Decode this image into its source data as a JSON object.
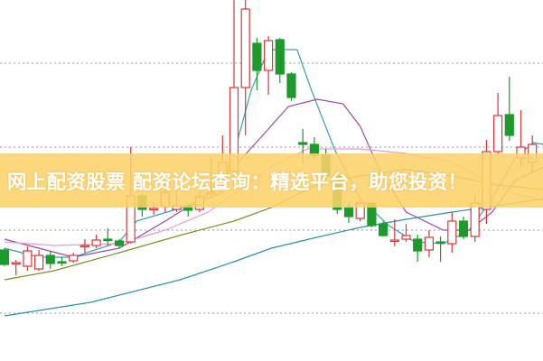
{
  "banner": {
    "text": "网上配资股票 配资论坛查询：精选平台，助您投资！"
  },
  "chart_data": {
    "type": "candlestick",
    "grid": true,
    "up_color": "#d9363e",
    "down_color": "#1e9a2c",
    "candles_ohlc_note_fields": [
      "open",
      "close",
      "high",
      "low"
    ],
    "candles": [
      [
        30.75,
        26.75,
        31.25,
        26.25
      ],
      [
        27,
        27.25,
        28,
        23.75
      ],
      [
        26.25,
        30.5,
        31.75,
        25
      ],
      [
        25.5,
        29.25,
        30.75,
        25
      ],
      [
        29.25,
        27,
        30.5,
        25.5
      ],
      [
        27.5,
        27.25,
        28.75,
        26.25
      ],
      [
        27.75,
        29.25,
        30,
        27.25
      ],
      [
        31.75,
        32,
        33.75,
        30
      ],
      [
        32,
        33.5,
        35,
        31.25
      ],
      [
        33.75,
        33.5,
        36.75,
        32
      ],
      [
        33.25,
        32,
        33.75,
        31.25
      ],
      [
        33,
        45.75,
        59.25,
        32.5
      ],
      [
        45.75,
        42,
        46.25,
        40
      ],
      [
        42,
        42.25,
        43.75,
        40.5
      ],
      [
        42.75,
        46.75,
        48.75,
        41.25
      ],
      [
        42,
        43,
        47.5,
        41.25
      ],
      [
        43,
        41.75,
        43.75,
        40
      ],
      [
        42,
        45.5,
        48.75,
        41.25
      ],
      [
        46.25,
        46.75,
        56.25,
        45
      ],
      [
        50,
        55,
        62.5,
        46.25
      ],
      [
        52.5,
        75.75,
        100,
        51.25
      ],
      [
        75.75,
        97.5,
        100,
        62.5
      ],
      [
        88,
        80.5,
        89.5,
        75
      ],
      [
        80.5,
        88.75,
        90,
        73.75
      ],
      [
        89,
        79.5,
        89.5,
        77
      ],
      [
        79.5,
        73,
        80,
        72
      ],
      [
        60.5,
        60,
        64.25,
        54.5
      ],
      [
        60,
        57,
        62,
        56
      ],
      [
        57,
        51.25,
        58.75,
        50
      ],
      [
        51.25,
        42,
        52.5,
        40.75
      ],
      [
        42.5,
        40,
        43.75,
        38.25
      ],
      [
        39.5,
        43.75,
        44.5,
        38.75
      ],
      [
        43.75,
        37.5,
        43.75,
        37
      ],
      [
        38,
        34.75,
        38.75,
        34.5
      ],
      [
        33.25,
        33.5,
        39.25,
        31.75
      ],
      [
        33.75,
        34.75,
        38,
        33
      ],
      [
        33.75,
        30.5,
        35,
        27.5
      ],
      [
        30.75,
        34.25,
        36.25,
        28.75
      ],
      [
        33,
        32.75,
        34.5,
        27.5
      ],
      [
        32.5,
        38.75,
        41.25,
        30
      ],
      [
        38.75,
        34.5,
        40,
        33.75
      ],
      [
        34.5,
        43.75,
        46.25,
        33
      ],
      [
        42,
        58,
        61.25,
        38
      ],
      [
        58,
        68,
        74.25,
        57
      ],
      [
        68.25,
        62.5,
        78.75,
        61
      ],
      [
        56.25,
        59.25,
        69.5,
        53.75
      ],
      [
        55,
        60,
        62.5,
        52.5
      ]
    ],
    "moving_averages": [
      {
        "color": "#3a9fb0",
        "points": [
          [
            0,
            31.25
          ],
          [
            3,
            28.75
          ],
          [
            6,
            28.75
          ],
          [
            10,
            33
          ],
          [
            11.5,
            38.75
          ],
          [
            15.5,
            42.5
          ],
          [
            18.75,
            46.25
          ],
          [
            20,
            57.5
          ],
          [
            21.5,
            75
          ],
          [
            23,
            86.25
          ],
          [
            25.5,
            86.25
          ],
          [
            26.75,
            75
          ],
          [
            28.75,
            58.75
          ],
          [
            31,
            45
          ],
          [
            33.5,
            37.5
          ],
          [
            35.75,
            33
          ],
          [
            38.25,
            32.5
          ],
          [
            40.5,
            36.25
          ],
          [
            42.5,
            45
          ],
          [
            44.5,
            56.25
          ],
          [
            46.1,
            60.5
          ],
          [
            47,
            60
          ]
        ]
      },
      {
        "color": "#9a4a9e",
        "points": [
          [
            0,
            33.75
          ],
          [
            3,
            31.25
          ],
          [
            6,
            28.75
          ],
          [
            10,
            31.25
          ],
          [
            14,
            38.75
          ],
          [
            17.75,
            46.25
          ],
          [
            20,
            53.75
          ],
          [
            22.5,
            62.5
          ],
          [
            24.75,
            70.5
          ],
          [
            27.25,
            72.5
          ],
          [
            29.5,
            71.25
          ],
          [
            31,
            65
          ],
          [
            32.75,
            52.5
          ],
          [
            35,
            41.25
          ],
          [
            38.25,
            36.25
          ],
          [
            40.5,
            36.25
          ],
          [
            42.5,
            41.25
          ],
          [
            44.5,
            50
          ],
          [
            47,
            53.75
          ]
        ]
      },
      {
        "color": "#e99ad8",
        "points": [
          [
            0,
            33
          ],
          [
            4.3,
            32
          ],
          [
            10,
            32.5
          ],
          [
            14,
            36.25
          ],
          [
            17.75,
            41.25
          ],
          [
            20,
            46.25
          ],
          [
            23.25,
            53.75
          ],
          [
            26.4,
            58.75
          ],
          [
            28,
            58.75
          ],
          [
            31,
            58.75
          ],
          [
            35,
            57.5
          ],
          [
            39,
            55
          ],
          [
            42,
            50
          ],
          [
            44.5,
            46.25
          ],
          [
            47,
            44.5
          ]
        ]
      },
      {
        "color": "#7f8f2a",
        "points": [
          [
            0,
            22.5
          ],
          [
            4.3,
            25
          ],
          [
            10,
            30
          ],
          [
            15.5,
            35
          ],
          [
            20,
            38.75
          ],
          [
            23.25,
            42.5
          ],
          [
            27.2,
            48.75
          ],
          [
            31,
            51.25
          ],
          [
            35,
            53
          ],
          [
            39,
            51.25
          ],
          [
            43,
            48.75
          ],
          [
            47,
            47.5
          ]
        ]
      },
      {
        "color": "#2f8fa8",
        "points": [
          [
            0,
            12.5
          ],
          [
            7.5,
            16.25
          ],
          [
            15.3,
            22.5
          ],
          [
            20,
            27.5
          ],
          [
            23.25,
            31.25
          ],
          [
            27.2,
            34.25
          ],
          [
            31,
            37
          ],
          [
            35,
            39.25
          ],
          [
            39,
            41.25
          ],
          [
            43,
            43
          ],
          [
            47,
            45
          ]
        ]
      }
    ]
  }
}
